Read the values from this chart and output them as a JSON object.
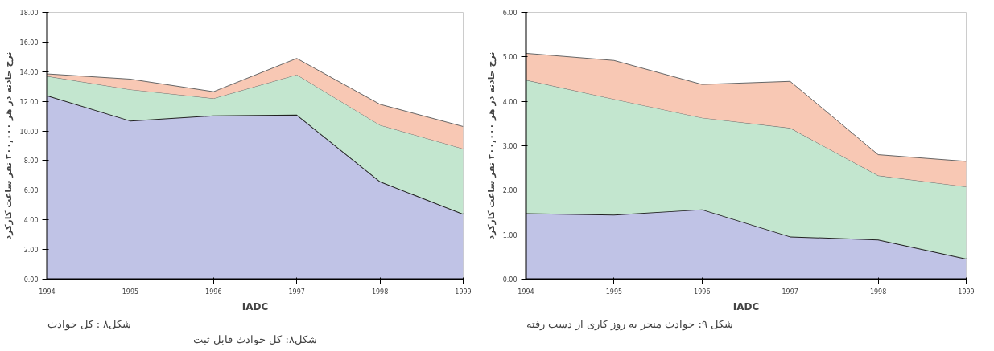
{
  "chart_data": [
    {
      "type": "area",
      "stacked": true,
      "x": [
        1994,
        1995,
        1996,
        1997,
        1998,
        1999
      ],
      "ylabel": "نرخ حادثه در هر ۲۰۰,۰۰۰ نفر ساعت کارکرد",
      "xlim": [
        1994,
        1999
      ],
      "ylim": [
        0,
        18
      ],
      "xticks": [
        1994,
        1995,
        1996,
        1997,
        1998,
        1999
      ],
      "yticks": [
        {
          "value": 0,
          "label": "0.00"
        },
        {
          "value": 2,
          "label": "2.00"
        },
        {
          "value": 4,
          "label": "4.00"
        },
        {
          "value": 6,
          "label": "6.00"
        },
        {
          "value": 8,
          "label": "8.00"
        },
        {
          "value": 10,
          "label": "10.00"
        },
        {
          "value": 12,
          "label": "12.00"
        },
        {
          "value": 14,
          "label": "14.00"
        },
        {
          "value": 16,
          "label": "16.00"
        },
        {
          "value": 18,
          "label": "18.00"
        }
      ],
      "grid": false,
      "series": [
        {
          "color": "#c0c3e6",
          "values": [
            12.4,
            10.7,
            11.05,
            11.1,
            6.6,
            4.4
          ]
        },
        {
          "color": "#c3e6cf",
          "values": [
            1.3,
            2.1,
            1.15,
            2.7,
            3.8,
            4.4
          ]
        },
        {
          "color": "#f8c8b4",
          "values": [
            0.15,
            0.7,
            0.45,
            1.1,
            1.4,
            1.5
          ]
        }
      ],
      "annotations": [
        "IADC",
        "شکل۸ : کل حوادث",
        "شکل۸: کل حوادث قابل ثبت"
      ]
    },
    {
      "type": "area",
      "stacked": true,
      "x": [
        1994,
        1995,
        1996,
        1997,
        1998,
        1999
      ],
      "ylabel": "نرخ حادثه در هر ۲۰۰,۰۰۰ نفر ساعت کارکرد",
      "xlim": [
        1994,
        1999
      ],
      "ylim": [
        0,
        6
      ],
      "xticks": [
        1994,
        1995,
        1996,
        1997,
        1998,
        1999
      ],
      "yticks": [
        {
          "value": 0,
          "label": "0.00"
        },
        {
          "value": 1,
          "label": "1.00"
        },
        {
          "value": 2,
          "label": "2.00"
        },
        {
          "value": 3,
          "label": "3.00"
        },
        {
          "value": 4,
          "label": "4.00"
        },
        {
          "value": 5,
          "label": "5.00"
        },
        {
          "value": 6,
          "label": "6.00"
        }
      ],
      "grid": false,
      "series": [
        {
          "color": "#c0c3e6",
          "values": [
            1.48,
            1.45,
            1.57,
            0.96,
            0.89,
            0.46
          ]
        },
        {
          "color": "#c3e6cf",
          "values": [
            3.0,
            2.6,
            2.06,
            2.44,
            1.44,
            1.62
          ]
        },
        {
          "color": "#f8c8b4",
          "values": [
            0.6,
            0.87,
            0.75,
            1.05,
            0.47,
            0.57
          ]
        }
      ],
      "annotations": [
        "IADC",
        "شکل ۹: حوادث منجر به روز کاری از دست رفته"
      ]
    }
  ]
}
